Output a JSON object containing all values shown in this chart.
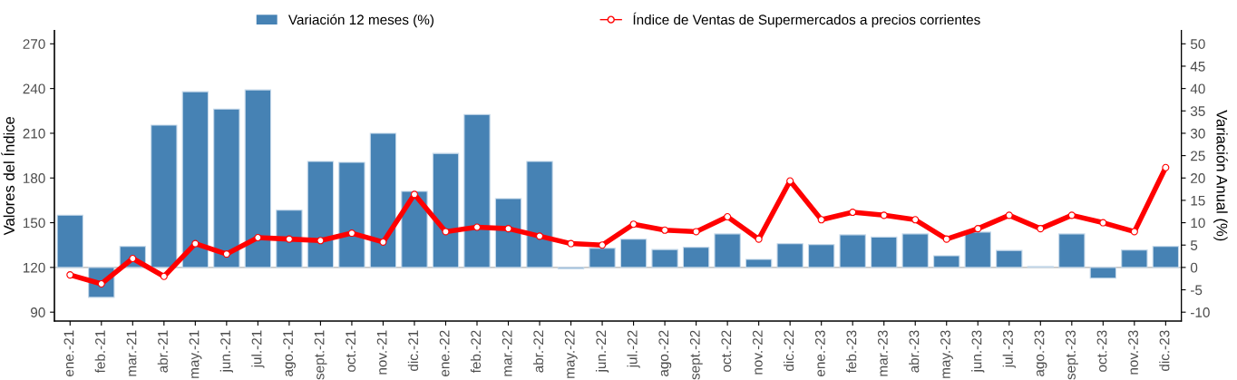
{
  "chart_data": {
    "type": "bar",
    "categories": [
      "ene.-21",
      "feb.-21",
      "mar.-21",
      "abr.-21",
      "may.-21",
      "jun.-21",
      "jul.-21",
      "ago.-21",
      "sept.-21",
      "oct.-21",
      "nov.-21",
      "dic.-21",
      "ene.-22",
      "feb.-22",
      "mar.-22",
      "abr.-22",
      "may.-22",
      "jun.-22",
      "jul.-22",
      "ago.-22",
      "sept.-22",
      "oct.-22",
      "nov.-22",
      "dic.-22",
      "ene.-23",
      "feb.-23",
      "mar.-23",
      "abr.-23",
      "may.-23",
      "jun.-23",
      "jul.-23",
      "ago.-23",
      "sept.-23",
      "oct.-23",
      "nov.-23",
      "dic.-23"
    ],
    "series": [
      {
        "name": "Variación 12 meses (%)",
        "axis": "y2",
        "color": "#4682b4",
        "values": [
          11.7,
          -6.7,
          4.7,
          31.8,
          39.3,
          35.4,
          39.7,
          12.8,
          23.7,
          23.5,
          30.0,
          17.0,
          25.5,
          34.2,
          15.4,
          23.7,
          -0.3,
          4.3,
          6.3,
          4.0,
          4.5,
          7.5,
          1.8,
          5.3,
          5.1,
          7.3,
          6.8,
          7.5,
          2.6,
          7.9,
          3.8,
          0.2,
          7.5,
          -2.4,
          3.9,
          4.7
        ]
      },
      {
        "name": "Índice de Ventas de Supermercados a precios corrientes",
        "type": "line",
        "axis": "y",
        "color": "#ff0000",
        "marker": "circle",
        "values": [
          115,
          109,
          126,
          114,
          136,
          129,
          140,
          139,
          138,
          143,
          137,
          169,
          144,
          147,
          146,
          141,
          136,
          135,
          149,
          145,
          144,
          154,
          139,
          178,
          152,
          157,
          155,
          152,
          139,
          146,
          155,
          146,
          155,
          150,
          144,
          187
        ]
      }
    ],
    "ylabel": "Valores del Índice",
    "y2label": "Variación Anual (%)",
    "ylim": [
      84,
      279
    ],
    "yticks": [
      90,
      120,
      150,
      180,
      210,
      240,
      270
    ],
    "y2lim": [
      -12,
      53
    ],
    "y2ticks": [
      -10,
      -5,
      0,
      5,
      10,
      15,
      20,
      25,
      30,
      35,
      40,
      45,
      50
    ],
    "ref_lines": [
      {
        "axis": "y2",
        "value": 0,
        "color": "#c8c8c8"
      }
    ],
    "grid": false,
    "legend": "top"
  }
}
